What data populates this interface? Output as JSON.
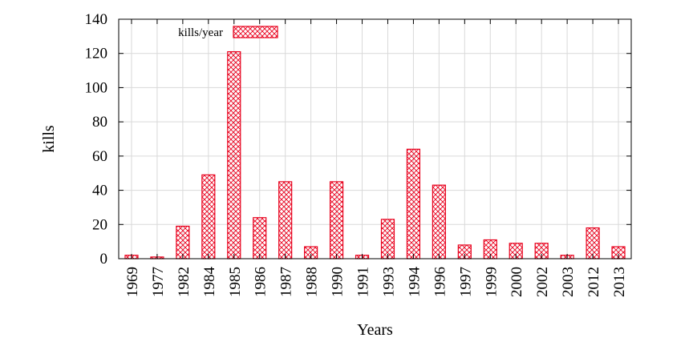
{
  "chart_data": {
    "type": "bar",
    "title": "",
    "xlabel": "Years",
    "ylabel": "kills",
    "ylim": [
      0,
      140
    ],
    "yticks": [
      0,
      20,
      40,
      60,
      80,
      100,
      120,
      140
    ],
    "grid": true,
    "legend_position": "top-left",
    "categories": [
      "1969",
      "1977",
      "1982",
      "1984",
      "1985",
      "1986",
      "1987",
      "1988",
      "1990",
      "1991",
      "1993",
      "1994",
      "1996",
      "1997",
      "1999",
      "2000",
      "2002",
      "2003",
      "2012",
      "2013"
    ],
    "series": [
      {
        "name": "kills/year",
        "color": "#e8001c",
        "pattern": "crosshatch",
        "values": [
          2,
          1,
          19,
          49,
          121,
          24,
          45,
          7,
          45,
          2,
          23,
          64,
          43,
          8,
          11,
          9,
          9,
          2,
          18,
          7
        ]
      }
    ]
  }
}
